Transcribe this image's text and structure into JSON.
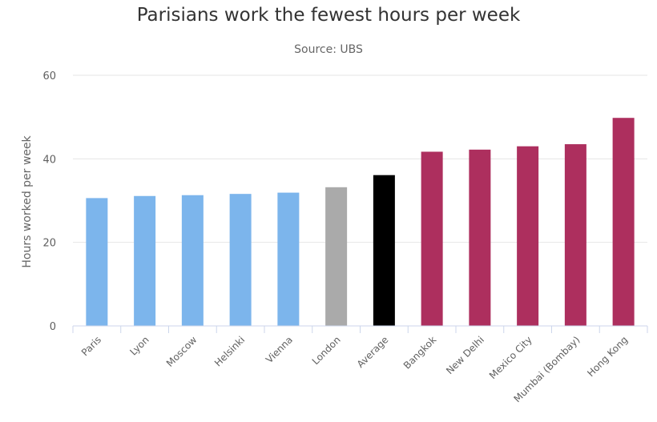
{
  "chart_data": {
    "type": "bar",
    "title": "Parisians work the fewest hours per week",
    "subtitle": "Source: UBS",
    "ylabel": "Hours worked per week",
    "xlabel": "",
    "ylim": [
      0,
      60
    ],
    "yticks": [
      "0",
      "20",
      "40",
      "60"
    ],
    "grid": true,
    "categories": [
      "Paris",
      "Lyon",
      "Moscow",
      "Helsinki",
      "Vienna",
      "London",
      "Average",
      "Bangkok",
      "New Delhi",
      "Mexico City",
      "Mumbai (Bombay)",
      "Hong Kong"
    ],
    "values": [
      30.6,
      31.1,
      31.3,
      31.6,
      31.9,
      33.2,
      36.1,
      41.7,
      42.2,
      43.0,
      43.5,
      49.8
    ],
    "colors": [
      "#7cb5ec",
      "#7cb5ec",
      "#7cb5ec",
      "#7cb5ec",
      "#7cb5ec",
      "#aaaaaa",
      "#000000",
      "#ad2f5e",
      "#ad2f5e",
      "#ad2f5e",
      "#ad2f5e",
      "#ad2f5e"
    ]
  }
}
